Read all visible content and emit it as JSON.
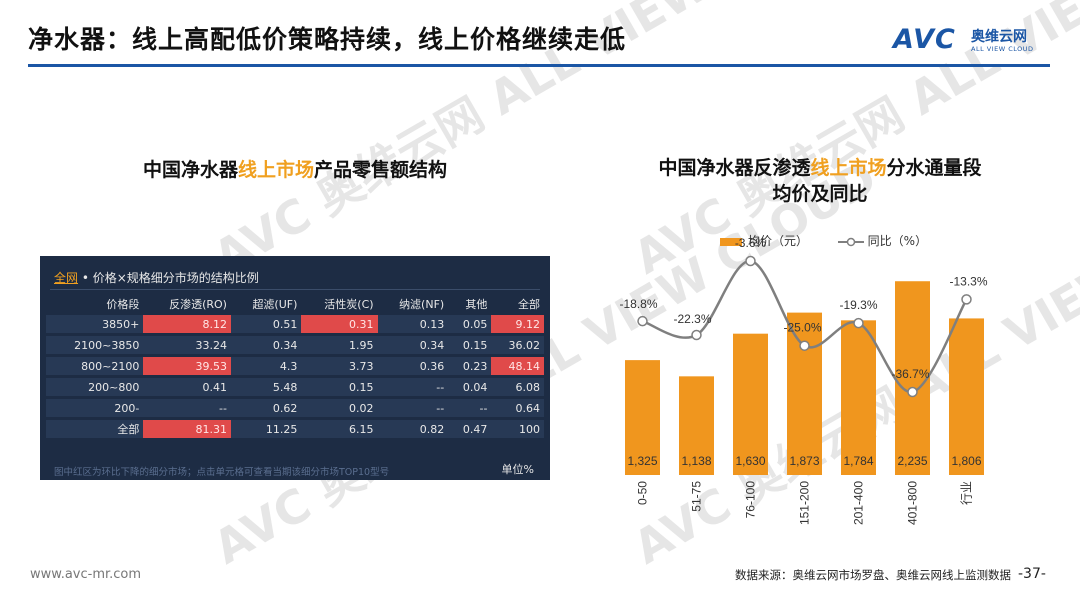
{
  "header": {
    "title": "净水器：线上高配低价策略持续，线上价格继续走低",
    "logo": {
      "main": "AVC",
      "cn": "奥维云网",
      "en": "ALL VIEW CLOUD"
    },
    "watermark": "AVC 奥维云网 ALL VIEW CLOUD"
  },
  "left_panel": {
    "title_pre": "中国净水器",
    "title_hl": "线上市场",
    "title_post": "产品零售额结构",
    "table_tab": "全网",
    "table_title": "• 价格×规格细分市场的结构比例",
    "columns": [
      "价格段",
      "反渗透(RO)",
      "超滤(UF)",
      "活性炭(C)",
      "纳滤(NF)",
      "其他",
      "全部"
    ],
    "rows": [
      {
        "cells": [
          "3850+",
          "8.12",
          "0.51",
          "0.31",
          "0.13",
          "0.05",
          "9.12"
        ],
        "hot": [
          1,
          3,
          6
        ]
      },
      {
        "cells": [
          "2100~3850",
          "33.24",
          "0.34",
          "1.95",
          "0.34",
          "0.15",
          "36.02"
        ],
        "hot": []
      },
      {
        "cells": [
          "800~2100",
          "39.53",
          "4.3",
          "3.73",
          "0.36",
          "0.23",
          "48.14"
        ],
        "hot": [
          1,
          6
        ]
      },
      {
        "cells": [
          "200~800",
          "0.41",
          "5.48",
          "0.15",
          "--",
          "0.04",
          "6.08"
        ],
        "hot": []
      },
      {
        "cells": [
          "200-",
          "--",
          "0.62",
          "0.02",
          "--",
          "--",
          "0.64"
        ],
        "hot": []
      },
      {
        "cells": [
          "全部",
          "81.31",
          "11.25",
          "6.15",
          "0.82",
          "0.47",
          "100"
        ],
        "hot": [
          1
        ]
      }
    ],
    "footnote": "图中红区为环比下降的细分市场；点击单元格可查看当期该细分市场TOP10型号",
    "unit": "单位%",
    "hot_color": "#e04a4a"
  },
  "right_panel": {
    "title_line1_pre": "中国净水器反渗透",
    "title_line1_hl": "线上市场",
    "title_line1_post": "分水通量段",
    "title_line2": "均价及同比",
    "legend_bar": "均价（元）",
    "legend_line": "同比（%）"
  },
  "chart_data": {
    "type": "bar",
    "categories": [
      "0-50",
      "51-75",
      "76-100",
      "151-200",
      "201-400",
      "401-800",
      "行业"
    ],
    "series": [
      {
        "name": "均价（元）",
        "type": "bar",
        "values": [
          1325,
          1138,
          1630,
          1873,
          1784,
          2235,
          1806
        ],
        "labels": [
          "1,325",
          "1,138",
          "1,630",
          "1,873",
          "1,784",
          "2,235",
          "1,806"
        ],
        "color": "#f0961e"
      },
      {
        "name": "同比（%）",
        "type": "line",
        "values": [
          -18.8,
          -22.3,
          -3.6,
          -25.0,
          -19.3,
          -36.7,
          -13.3
        ],
        "labels": [
          "-18.8%",
          "-22.3%",
          "-3.6%",
          "-25.0%",
          "-19.3%",
          "-36.7%",
          "-13.3%"
        ],
        "color": "#7f7f7f"
      }
    ],
    "grid": false,
    "legend": "top"
  },
  "footer": {
    "url": "www.avc-mr.com",
    "source": "数据来源：奥维云网市场罗盘、奥维云网线上监测数据",
    "page": "-37-"
  }
}
